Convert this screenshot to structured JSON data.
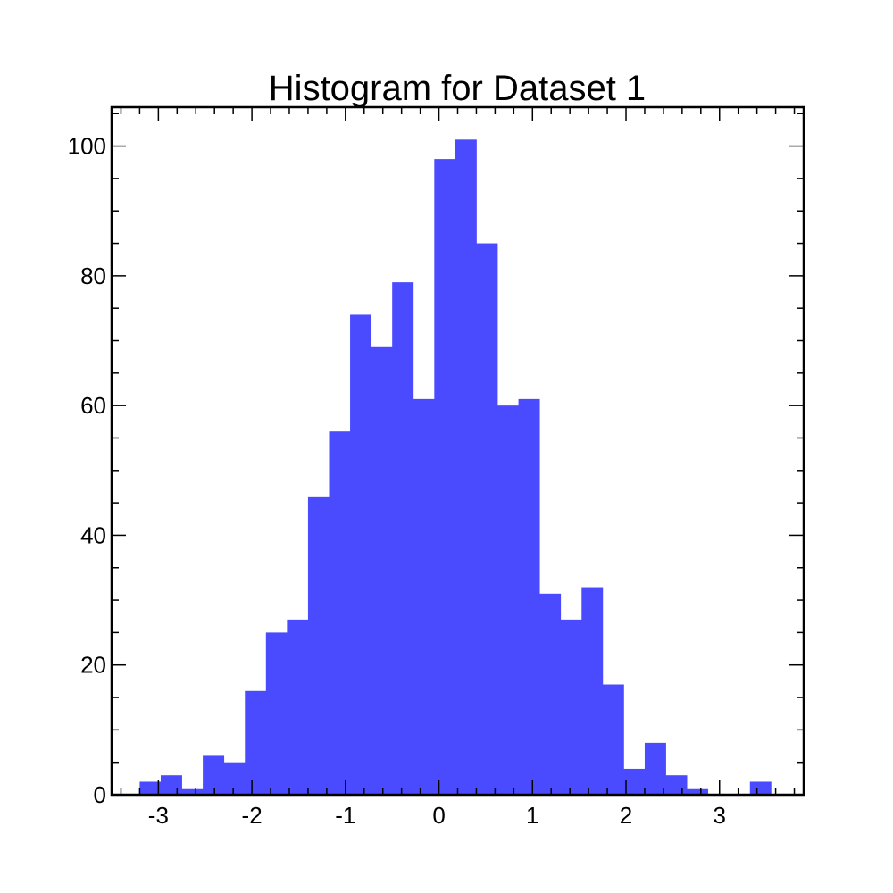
{
  "chart_data": {
    "type": "bar",
    "title": "Histogram for Dataset 1",
    "xlabel": "",
    "ylabel": "",
    "bar_color": "#4a4aff",
    "xlim": [
      -3.5,
      3.9
    ],
    "ylim": [
      0,
      106
    ],
    "bins": {
      "start": -3.2,
      "width": 0.225,
      "counts": [
        2,
        3,
        1,
        6,
        5,
        16,
        25,
        27,
        46,
        56,
        74,
        69,
        79,
        61,
        98,
        101,
        85,
        60,
        61,
        31,
        27,
        32,
        17,
        4,
        8,
        3,
        1,
        0,
        0,
        2
      ]
    },
    "x_ticks": [
      {
        "value": -3,
        "label": "-3"
      },
      {
        "value": -2,
        "label": "-2"
      },
      {
        "value": -1,
        "label": "-1"
      },
      {
        "value": 0,
        "label": "0"
      },
      {
        "value": 1,
        "label": "1"
      },
      {
        "value": 2,
        "label": "2"
      },
      {
        "value": 3,
        "label": "3"
      }
    ],
    "y_ticks": [
      {
        "value": 0,
        "label": "0"
      },
      {
        "value": 20,
        "label": "20"
      },
      {
        "value": 40,
        "label": "40"
      },
      {
        "value": 60,
        "label": "60"
      },
      {
        "value": 80,
        "label": "80"
      },
      {
        "value": 100,
        "label": "100"
      }
    ],
    "x_minor_step": 0.2,
    "y_minor_step": 5,
    "grid": false,
    "legend": "none"
  }
}
